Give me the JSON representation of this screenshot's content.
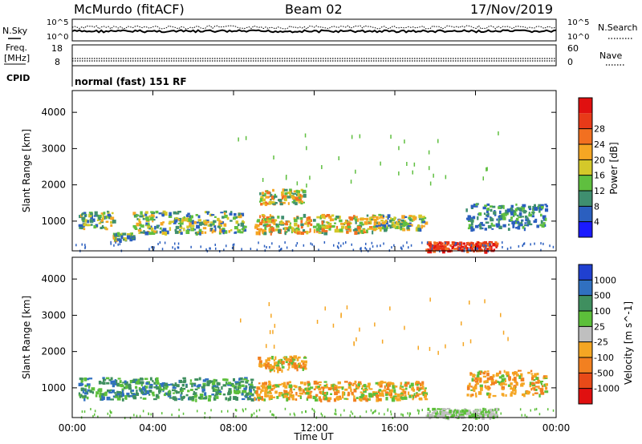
{
  "header": {
    "station": "McMurdo (fitACF)",
    "beam": "Beam 02",
    "date": "17/Nov/2019"
  },
  "strip_panels": {
    "nsky_label": "N.Sky",
    "nsearch_label": "N.Search",
    "noise_ticks_left": [
      "10^5",
      "10^0"
    ],
    "noise_ticks_right": [
      "10^5",
      "10^0"
    ],
    "freq_label_line1": "Freq.",
    "freq_label_line2": "[MHz]",
    "freq_ticks": [
      "18",
      "8"
    ],
    "nave_label": "Nave",
    "nave_ticks": [
      "60",
      "0"
    ],
    "cpid_label": "CPID",
    "cpid_text": "normal (fast) 151 RF"
  },
  "chart_data": [
    {
      "type": "heatmap",
      "name": "power",
      "ylabel": "Slant Range [km]",
      "yticks": [
        1000,
        2000,
        3000,
        4000
      ],
      "ylim": [
        180,
        4600
      ],
      "xlim_hours": [
        0,
        24
      ],
      "colorbar": {
        "label": "Power [dB]",
        "ticks": [
          "4",
          "8",
          "12",
          "16",
          "20",
          "24",
          "28"
        ],
        "colors": [
          "#1a1aff",
          "#2b5fbf",
          "#3f8f6f",
          "#5fbf3f",
          "#d4c82a",
          "#f5a623",
          "#f27020",
          "#e83a18",
          "#e01010"
        ]
      },
      "echo_regions_desc": [
        {
          "t": [
            0.3,
            2.0
          ],
          "r": [
            800,
            1300
          ],
          "level": "mid"
        },
        {
          "t": [
            2.0,
            3.0
          ],
          "r": [
            500,
            700
          ],
          "level": "mid"
        },
        {
          "t": [
            3.0,
            8.5
          ],
          "r": [
            700,
            1300
          ],
          "level": "mid"
        },
        {
          "t": [
            9.2,
            11.5
          ],
          "r": [
            1500,
            1900
          ],
          "level": "high"
        },
        {
          "t": [
            9.0,
            15.0
          ],
          "r": [
            700,
            1200
          ],
          "level": "high"
        },
        {
          "t": [
            15.0,
            17.5
          ],
          "r": [
            800,
            1200
          ],
          "level": "mid"
        },
        {
          "t": [
            17.5,
            21.0
          ],
          "r": [
            200,
            450
          ],
          "level": "max"
        },
        {
          "t": [
            19.5,
            23.5
          ],
          "r": [
            800,
            1500
          ],
          "level": "low"
        }
      ]
    },
    {
      "type": "heatmap",
      "name": "velocity",
      "xlabel": "Time UT",
      "ylabel": "Slant Range [km]",
      "yticks": [
        1000,
        2000,
        3000,
        4000
      ],
      "ylim": [
        180,
        4600
      ],
      "xticks": [
        "00:00",
        "04:00",
        "08:00",
        "12:00",
        "16:00",
        "20:00",
        "00:00"
      ],
      "colorbar": {
        "label": "Velocity [m s^-1]",
        "ticks": [
          "1000",
          "500",
          "100",
          "25",
          "-25",
          "-100",
          "-500",
          "-1000"
        ],
        "colors": [
          "#2040d0",
          "#3070c0",
          "#3f8f5f",
          "#5cbf3a",
          "#bfbfbf",
          "#f5a623",
          "#f28020",
          "#e84a18",
          "#e01010"
        ]
      },
      "echo_regions_desc": [
        {
          "t": [
            0.3,
            9.0
          ],
          "r": [
            700,
            1300
          ],
          "level": "positive"
        },
        {
          "t": [
            9.2,
            11.5
          ],
          "r": [
            1500,
            1900
          ],
          "level": "negative"
        },
        {
          "t": [
            9.0,
            17.5
          ],
          "r": [
            700,
            1200
          ],
          "level": "negative"
        },
        {
          "t": [
            17.5,
            21.0
          ],
          "r": [
            200,
            450
          ],
          "level": "ground"
        },
        {
          "t": [
            19.5,
            23.5
          ],
          "r": [
            800,
            1500
          ],
          "level": "negative"
        }
      ]
    }
  ]
}
